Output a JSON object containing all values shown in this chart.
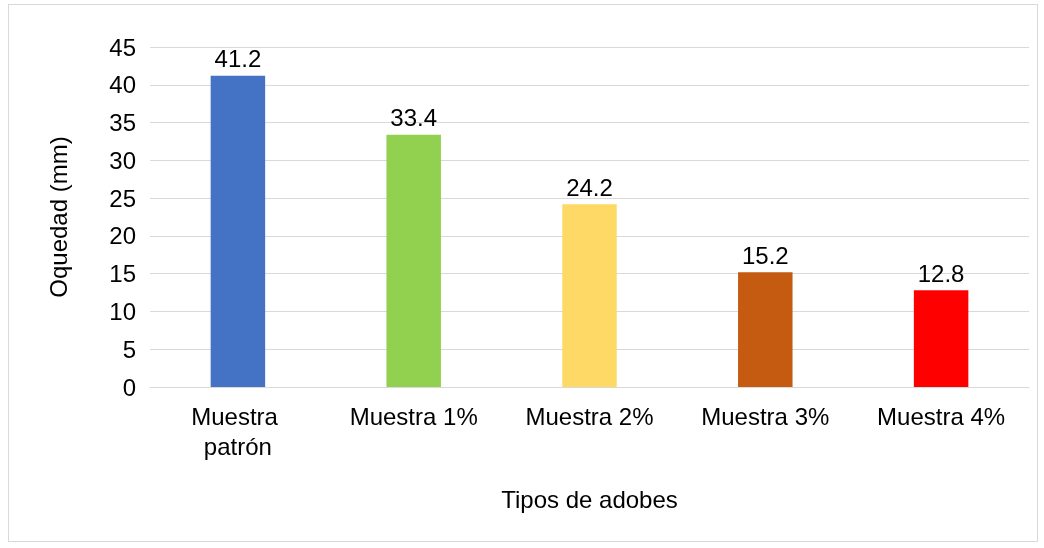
{
  "chart_data": {
    "type": "bar",
    "xlabel": "Tipos de adobes",
    "ylabel": "Oquedad (mm)",
    "categories": [
      "Muestra patrón",
      "Muestra 1%",
      "Muestra 2%",
      "Muestra 3%",
      "Muestra 4%"
    ],
    "values": [
      41.2,
      33.4,
      24.2,
      15.2,
      12.8
    ],
    "colors": [
      "#4472c4",
      "#92d050",
      "#ffd966",
      "#c55a11",
      "#ff0000"
    ],
    "ylim": [
      0,
      45
    ],
    "yticks": [
      0,
      5,
      10,
      15,
      20,
      25,
      30,
      35,
      40,
      45
    ],
    "grid": "y",
    "data_labels": true
  }
}
